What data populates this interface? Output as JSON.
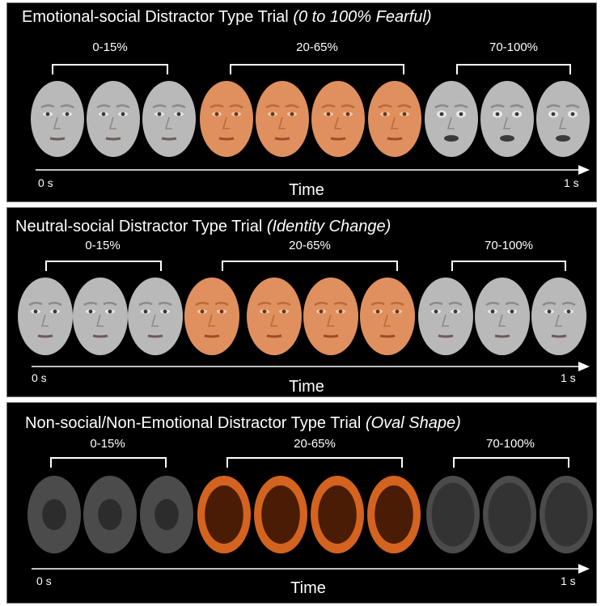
{
  "time_axis": {
    "start_label": "0 s",
    "end_label": "1 s",
    "axis_label": "Time"
  },
  "colors": {
    "background": "#000000",
    "face_gray": "#b9b9b9",
    "face_orange": "#e0905e",
    "oval_gray_outer": "#4b4b4b",
    "oval_gray_inner": "#2c2c2c",
    "oval_orange_outer": "#d4631f",
    "oval_orange_inner": "#4a1c06"
  },
  "panels": [
    {
      "id": "emotional",
      "title": "Emotional-social Distractor Type Trial ",
      "title_italic": "(0 to 100% Fearful)",
      "stimulus": "face",
      "groups": [
        {
          "label": "0-15%",
          "count": 3,
          "color": "gray"
        },
        {
          "label": "20-65%",
          "count": 4,
          "color": "orange"
        },
        {
          "label": "70-100%",
          "count": 3,
          "color": "gray"
        }
      ]
    },
    {
      "id": "neutral",
      "title": "Neutral-social Distractor Type Trial ",
      "title_italic": "(Identity Change)",
      "stimulus": "face",
      "groups": [
        {
          "label": "0-15%",
          "count": 3,
          "color": "gray"
        },
        {
          "label": "20-65%",
          "count": 4,
          "color": "orange"
        },
        {
          "label": "70-100%",
          "count": 3,
          "color": "gray"
        }
      ]
    },
    {
      "id": "nonsocial",
      "title": "Non-social/Non-Emotional Distractor Type Trial ",
      "title_italic": "(Oval Shape)",
      "stimulus": "oval",
      "groups": [
        {
          "label": "0-15%",
          "count": 3,
          "color": "gray"
        },
        {
          "label": "20-65%",
          "count": 4,
          "color": "orange"
        },
        {
          "label": "70-100%",
          "count": 3,
          "color": "gray"
        }
      ]
    }
  ]
}
